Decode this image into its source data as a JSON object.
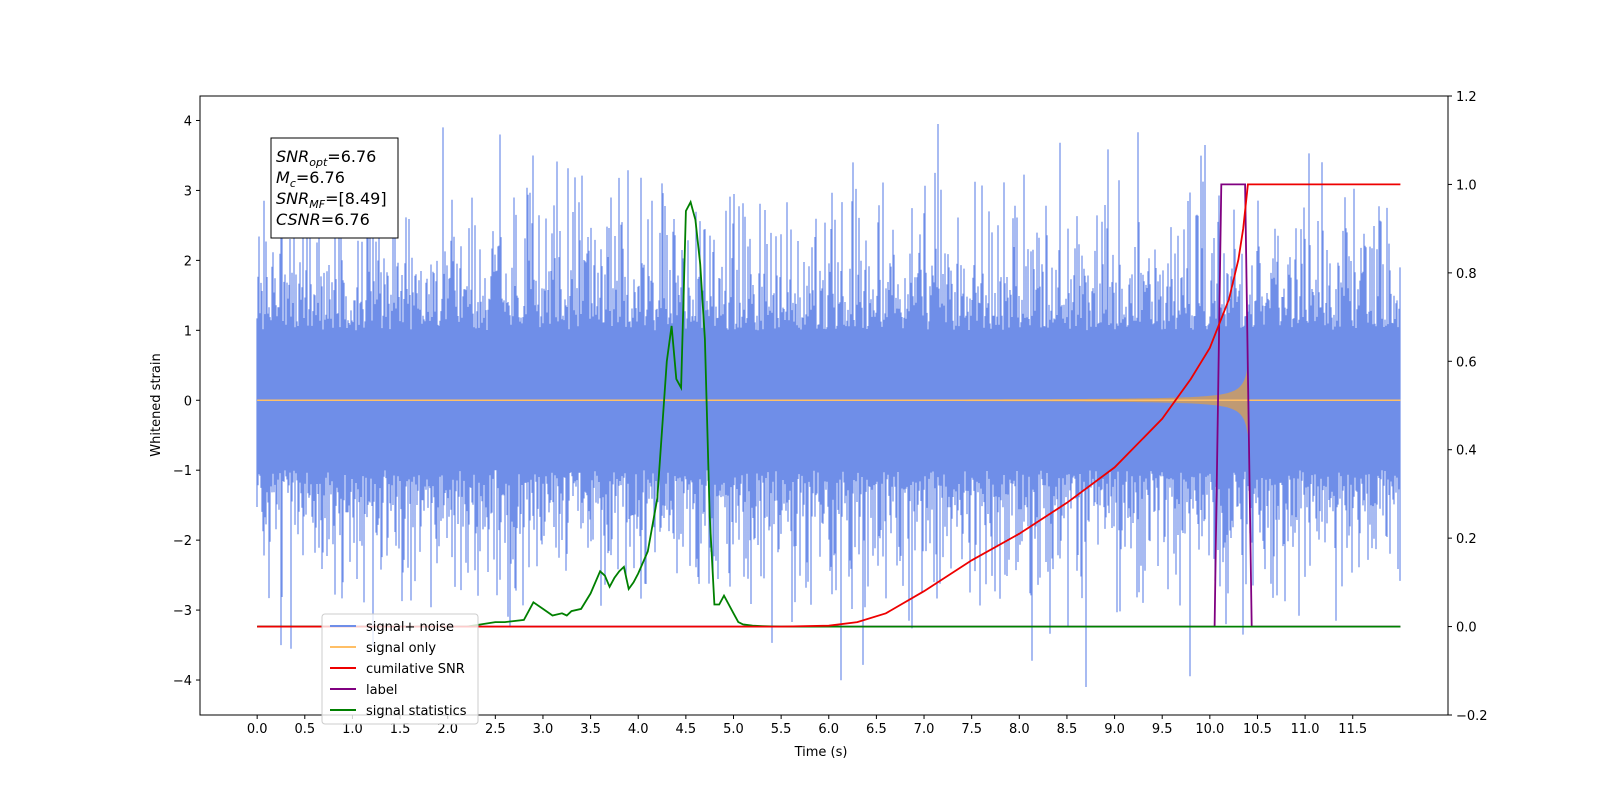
{
  "chart_data": {
    "type": "line",
    "xlabel": "Time (s)",
    "ylabel": "Whitened strain",
    "xlim": [
      -0.6,
      12.5
    ],
    "ylim_left": [
      -4.5,
      4.35
    ],
    "ylim_right": [
      -0.2,
      1.2
    ],
    "x_ticks": [
      "0.0",
      "0.5",
      "1.0",
      "1.5",
      "2.0",
      "2.5",
      "3.0",
      "3.5",
      "4.0",
      "4.5",
      "5.0",
      "5.5",
      "6.0",
      "6.5",
      "7.0",
      "7.5",
      "8.0",
      "8.5",
      "9.0",
      "9.5",
      "10.0",
      "10.5",
      "11.0",
      "11.5"
    ],
    "y_left_ticks": [
      "4",
      "3",
      "2",
      "1",
      "0",
      "−1",
      "−2",
      "−3",
      "−4"
    ],
    "y_right_ticks": [
      "1.2",
      "1.0",
      "0.8",
      "0.6",
      "0.4",
      "0.2",
      "0.0",
      "−0.2"
    ],
    "annotation": {
      "lines": [
        {
          "sym": "SNR",
          "sub": "opt",
          "val": "=6.76"
        },
        {
          "sym": "M",
          "sub": "c",
          "val": "=6.76"
        },
        {
          "sym": "SNR",
          "sub": "MF",
          "val": "=[8.49]"
        },
        {
          "sym": "CSNR",
          "sub": "",
          "val": "=6.76"
        }
      ]
    },
    "legend": {
      "placement": "lower-left",
      "entries": [
        {
          "label": "signal+ noise",
          "color": "#6f8ee8"
        },
        {
          "label": "signal only",
          "color": "#ffbf66"
        },
        {
          "label": "cumilative SNR",
          "color": "#ee0000"
        },
        {
          "label": "label",
          "color": "#800080"
        },
        {
          "label": "signal statistics",
          "color": "#008000"
        }
      ]
    },
    "series": [
      {
        "name": "signal+ noise",
        "axis": "left",
        "color": "#6f8ee8",
        "x_range": [
          0.0,
          12.0
        ],
        "envelope_typical": [
          -1.7,
          1.7
        ],
        "extremes": [
          [
            0.25,
            -3.5
          ],
          [
            2.55,
            3.8
          ],
          [
            2.9,
            3.5
          ],
          [
            7.15,
            3.95
          ],
          [
            9.95,
            3.65
          ],
          [
            8.7,
            -4.1
          ],
          [
            10.35,
            -3.35
          ],
          [
            6.25,
            3.4
          ],
          [
            4.25,
            3.1
          ]
        ]
      },
      {
        "name": "signal only",
        "axis": "left",
        "color": "#ffbf66",
        "x_range": [
          0.0,
          12.0
        ],
        "chirp_end": 10.4,
        "max_amplitude": 0.5
      },
      {
        "name": "cumilative SNR",
        "axis": "right",
        "color": "#ee0000",
        "x": [
          0.0,
          5.0,
          5.5,
          6.0,
          6.3,
          6.6,
          7.0,
          7.5,
          8.0,
          8.5,
          9.0,
          9.5,
          9.8,
          10.0,
          10.2,
          10.3,
          10.35,
          10.4,
          10.45,
          11.0,
          11.5,
          12.0
        ],
        "y": [
          0.0,
          0.0,
          0.0,
          0.002,
          0.01,
          0.03,
          0.08,
          0.15,
          0.21,
          0.28,
          0.36,
          0.47,
          0.56,
          0.63,
          0.74,
          0.83,
          0.9,
          1.0,
          1.0,
          1.0,
          1.0,
          1.0
        ]
      },
      {
        "name": "label",
        "axis": "right",
        "color": "#800080",
        "x": [
          0.0,
          10.05,
          10.12,
          10.37,
          10.44,
          12.0
        ],
        "y": [
          0.0,
          0.0,
          1.0,
          1.0,
          0.0,
          0.0
        ]
      },
      {
        "name": "signal statistics",
        "axis": "right",
        "color": "#008000",
        "x": [
          0.0,
          2.2,
          2.5,
          2.6,
          2.8,
          2.9,
          3.0,
          3.1,
          3.2,
          3.25,
          3.3,
          3.4,
          3.5,
          3.6,
          3.65,
          3.7,
          3.75,
          3.8,
          3.85,
          3.9,
          3.95,
          4.0,
          4.1,
          4.2,
          4.3,
          4.35,
          4.4,
          4.45,
          4.5,
          4.55,
          4.6,
          4.65,
          4.7,
          4.75,
          4.8,
          4.85,
          4.9,
          5.0,
          5.05,
          5.1,
          5.2,
          5.3,
          5.5,
          6.0,
          12.0
        ],
        "y": [
          0.0,
          0.0,
          0.01,
          0.01,
          0.015,
          0.055,
          0.04,
          0.025,
          0.03,
          0.025,
          0.035,
          0.04,
          0.075,
          0.125,
          0.115,
          0.09,
          0.11,
          0.125,
          0.135,
          0.085,
          0.1,
          0.12,
          0.17,
          0.29,
          0.6,
          0.68,
          0.56,
          0.54,
          0.94,
          0.96,
          0.92,
          0.82,
          0.65,
          0.25,
          0.05,
          0.05,
          0.07,
          0.03,
          0.01,
          0.005,
          0.002,
          0.001,
          0.0,
          0.0,
          0.0
        ]
      }
    ]
  }
}
